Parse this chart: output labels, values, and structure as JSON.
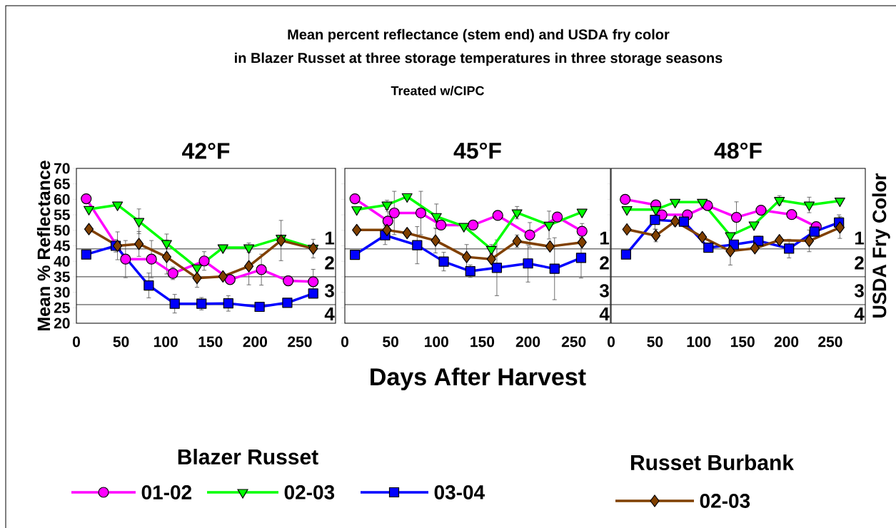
{
  "chart_data": [
    {
      "type": "line",
      "title": "42°F",
      "ylabel": "Mean % Reflectance",
      "xlim": [
        0,
        290
      ],
      "ylim": [
        20,
        70
      ],
      "xticks": [
        0,
        50,
        100,
        150,
        200,
        250
      ],
      "yticks": [
        20,
        25,
        30,
        35,
        40,
        45,
        50,
        55,
        60,
        65,
        70
      ],
      "legend": "bottom",
      "annotations": [
        "Mean percent reflectance (stem end) and USDA fry color",
        "in Blazer Russet at three storage temperatures in three storage seasons",
        "Treated w/CIPC",
        "Blazer Russet",
        "Russet Burbank",
        "1",
        "2",
        "3",
        "4"
      ],
      "ref_lines": [
        {
          "axis": "y",
          "value": 44
        },
        {
          "axis": "y",
          "value": 35
        },
        {
          "axis": "y",
          "value": 26
        }
      ],
      "series": [
        {
          "name": "01-02",
          "color": "#ff00ff",
          "marker": "circle",
          "x": [
            11,
            55,
            84,
            108,
            143,
            172,
            207,
            237,
            265
          ],
          "values": [
            60.2,
            40.7,
            40.7,
            36.1,
            40.1,
            34.1,
            37.3,
            33.7,
            33.4
          ],
          "errors": [
            null,
            6,
            6,
            2,
            3,
            null,
            5,
            1.5,
            4
          ]
        },
        {
          "name": "02-03",
          "color": "#00ff00",
          "marker": "triangle",
          "x": [
            14,
            46,
            70,
            101,
            135,
            164,
            193,
            229,
            265
          ],
          "values": [
            56.8,
            58.2,
            52.9,
            45.8,
            37.9,
            44.4,
            44.4,
            47.5,
            44.3
          ],
          "errors": [
            null,
            null,
            4,
            3,
            null,
            null,
            1.5,
            null,
            null
          ]
        },
        {
          "name": "03-04",
          "color": "#0000ff",
          "marker": "square",
          "x": [
            11,
            44,
            81,
            110,
            140,
            170,
            205,
            236,
            265
          ],
          "values": [
            42.2,
            45.0,
            32.2,
            26.3,
            26.3,
            26.4,
            25.3,
            26.6,
            29.6
          ],
          "errors": [
            null,
            2,
            4,
            3,
            2,
            2.5,
            null,
            null,
            null
          ]
        },
        {
          "name": "02-03",
          "color": "#804000",
          "marker": "diamond",
          "x": [
            14,
            46,
            70,
            101,
            135,
            164,
            193,
            229,
            265
          ],
          "values": [
            50.4,
            45.0,
            45.6,
            41.4,
            34.6,
            35.1,
            38.4,
            46.7,
            44.1
          ],
          "errors": [
            null,
            4.5,
            4,
            5.5,
            3,
            null,
            6,
            6.5,
            3
          ]
        }
      ]
    },
    {
      "type": "line",
      "title": "45°F",
      "xlabel": "Days After Harvest",
      "xlim": [
        0,
        290
      ],
      "ylim": [
        20,
        70
      ],
      "xticks": [
        0,
        50,
        100,
        150,
        200,
        250
      ],
      "yticks": [
        20,
        25,
        30,
        35,
        40,
        45,
        50,
        55,
        60,
        65,
        70
      ],
      "tick_labels": "x",
      "annotations": [
        "1",
        "2",
        "3",
        "4"
      ],
      "ref_lines": [
        {
          "axis": "y",
          "value": 44
        },
        {
          "axis": "y",
          "value": 35
        },
        {
          "axis": "y",
          "value": 26
        }
      ],
      "series": [
        {
          "color": "#ff00ff",
          "marker": "circle",
          "x": [
            11,
            47,
            54,
            83,
            105,
            140,
            167,
            202,
            232,
            259
          ],
          "values": [
            60.2,
            53.0,
            55.6,
            55.6,
            51.7,
            51.7,
            54.8,
            48.5,
            54.3,
            49.7
          ],
          "errors": [
            null,
            3,
            7,
            7,
            null,
            null,
            1.5,
            4,
            null,
            2.5
          ]
        },
        {
          "color": "#00ff00",
          "marker": "triangle",
          "x": [
            13,
            46,
            68,
            100,
            130,
            160,
            188,
            223,
            259
          ],
          "values": [
            56.7,
            58.2,
            60.9,
            54.5,
            51.3,
            43.9,
            55.7,
            51.7,
            55.9
          ],
          "errors": [
            null,
            1.5,
            null,
            4,
            null,
            1.5,
            2,
            4.5,
            null
          ]
        },
        {
          "color": "#0000ff",
          "marker": "square",
          "x": [
            11,
            44,
            79,
            108,
            137,
            166,
            200,
            229,
            258
          ],
          "values": [
            42.1,
            48.4,
            45.2,
            39.9,
            36.8,
            37.9,
            39.3,
            37.6,
            41.1
          ],
          "errors": [
            null,
            3,
            6,
            3,
            2,
            9,
            6,
            10,
            6.5
          ]
        },
        {
          "color": "#804000",
          "marker": "diamond",
          "x": [
            13,
            46,
            68,
            99,
            133,
            160,
            188,
            224,
            259
          ],
          "values": [
            50.1,
            50.1,
            49.1,
            46.7,
            41.4,
            40.7,
            46.5,
            44.8,
            46.1
          ],
          "errors": [
            null,
            null,
            null,
            4,
            4,
            null,
            2,
            null,
            null
          ]
        }
      ]
    },
    {
      "type": "line",
      "title": "48°F",
      "y2label": "USDA Fry Color",
      "xlim": [
        0,
        290
      ],
      "ylim": [
        20,
        70
      ],
      "xticks": [
        0,
        50,
        100,
        150,
        200,
        250
      ],
      "yticks": [
        20,
        25,
        30,
        35,
        40,
        45,
        50,
        55,
        60,
        65,
        70
      ],
      "tick_labels": "x",
      "annotations": [
        "1",
        "2",
        "3",
        "4"
      ],
      "ref_lines": [
        {
          "axis": "y",
          "value": 44
        },
        {
          "axis": "y",
          "value": 35
        },
        {
          "axis": "y",
          "value": 26
        }
      ],
      "series": [
        {
          "color": "#ff00ff",
          "marker": "circle",
          "x": [
            16,
            51,
            58,
            87,
            110,
            143,
            171,
            206,
            234
          ],
          "values": [
            60.0,
            58.2,
            55.0,
            55.0,
            58.0,
            54.2,
            56.5,
            55.1,
            51.2
          ],
          "errors": [
            null,
            1.5,
            null,
            null,
            null,
            5,
            null,
            null,
            null
          ]
        },
        {
          "color": "#00ff00",
          "marker": "triangle",
          "x": [
            18,
            51,
            73,
            104,
            136,
            163,
            192,
            226,
            261
          ],
          "values": [
            56.7,
            56.7,
            59.1,
            59.1,
            48.3,
            51.8,
            59.7,
            58.2,
            59.5
          ],
          "errors": [
            null,
            null,
            null,
            null,
            null,
            null,
            1.5,
            2.5,
            null
          ]
        },
        {
          "color": "#0000ff",
          "marker": "square",
          "x": [
            17,
            50,
            83,
            111,
            140,
            168,
            203,
            232,
            260
          ],
          "values": [
            42.2,
            53.4,
            52.8,
            44.4,
            45.4,
            46.6,
            44.1,
            49.6,
            52.5
          ],
          "errors": [
            null,
            3,
            null,
            null,
            null,
            1.5,
            3,
            null,
            2.5
          ]
        },
        {
          "color": "#804000",
          "marker": "diamond",
          "x": [
            18,
            51,
            73,
            104,
            136,
            164,
            192,
            226,
            261
          ],
          "values": [
            50.3,
            48.3,
            52.9,
            47.8,
            43.3,
            44.2,
            46.8,
            46.6,
            50.9
          ],
          "errors": [
            null,
            2,
            1.5,
            null,
            4.5,
            null,
            null,
            3.5,
            3.5
          ]
        }
      ]
    }
  ]
}
